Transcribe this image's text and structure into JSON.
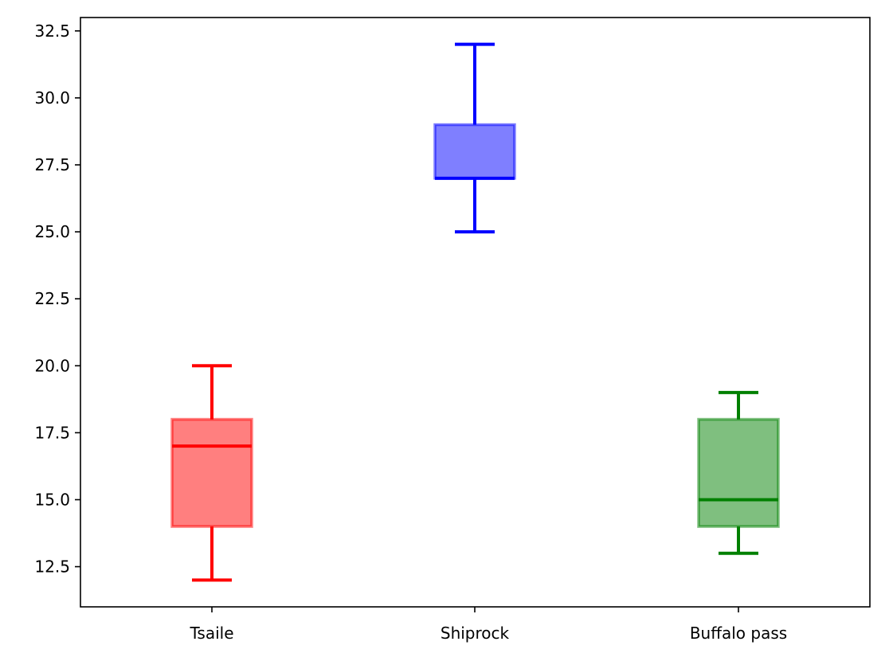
{
  "chart_data": {
    "type": "box",
    "title": "",
    "xlabel": "",
    "ylabel": "",
    "ylim": [
      11.0,
      33.0
    ],
    "yticks": [
      12.5,
      15.0,
      17.5,
      20.0,
      22.5,
      25.0,
      27.5,
      30.0,
      32.5
    ],
    "ytick_labels": [
      "12.5",
      "15.0",
      "17.5",
      "20.0",
      "22.5",
      "25.0",
      "27.5",
      "30.0",
      "32.5"
    ],
    "categories": [
      "Tsaile",
      "Shiprock",
      "Buffalo pass"
    ],
    "boxes": [
      {
        "category": "Tsaile",
        "whisker_low": 12.0,
        "q1": 14.0,
        "median": 17.0,
        "q3": 18.0,
        "whisker_high": 20.0,
        "color": "#ff0000"
      },
      {
        "category": "Shiprock",
        "whisker_low": 25.0,
        "q1": 27.0,
        "median": 27.0,
        "q3": 29.0,
        "whisker_high": 32.0,
        "color": "#0000ff"
      },
      {
        "category": "Buffalo pass",
        "whisker_low": 13.0,
        "q1": 14.0,
        "median": 15.0,
        "q3": 18.0,
        "whisker_high": 19.0,
        "color": "#008000"
      }
    ],
    "grid": false,
    "legend": "none"
  }
}
